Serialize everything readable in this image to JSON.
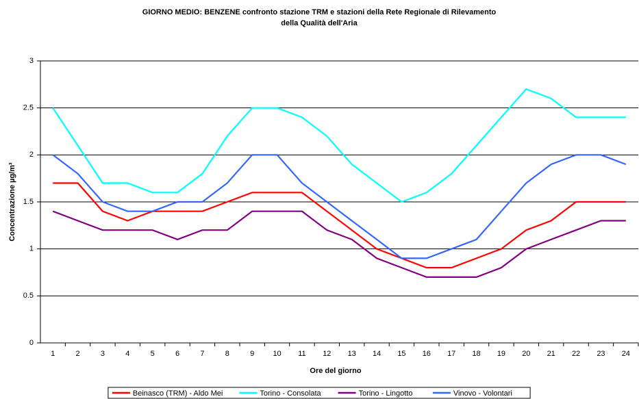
{
  "chart_data": {
    "type": "line",
    "title": [
      "GIORNO MEDIO:  BENZENE confronto stazione TRM e stazioni della Rete Regionale di Rilevamento",
      "della Qualità dell'Aria"
    ],
    "xlabel": "Ore del giorno",
    "ylabel": "Concentrazione µg/m³",
    "categories": [
      1,
      2,
      3,
      4,
      5,
      6,
      7,
      8,
      9,
      10,
      11,
      12,
      13,
      14,
      15,
      16,
      17,
      18,
      19,
      20,
      21,
      22,
      23,
      24
    ],
    "ylim": [
      0,
      3
    ],
    "yticks": [
      0,
      0.5,
      1,
      1.5,
      2,
      2.5,
      3
    ],
    "grid": true,
    "legend": "bottom",
    "series": [
      {
        "name": "Beinasco (TRM) - Aldo Mei",
        "color": "#ff0000",
        "values": [
          1.7,
          1.7,
          1.4,
          1.3,
          1.4,
          1.4,
          1.4,
          1.5,
          1.6,
          1.6,
          1.6,
          1.4,
          1.2,
          1.0,
          0.9,
          0.8,
          0.8,
          0.9,
          1.0,
          1.2,
          1.3,
          1.5,
          1.5,
          1.5
        ]
      },
      {
        "name": "Torino - Consolata",
        "color": "#00ffff",
        "values": [
          2.5,
          2.1,
          1.7,
          1.7,
          1.6,
          1.6,
          1.8,
          2.2,
          2.5,
          2.5,
          2.4,
          2.2,
          1.9,
          1.7,
          1.5,
          1.6,
          1.8,
          2.1,
          2.4,
          2.7,
          2.6,
          2.4,
          2.4,
          2.4
        ]
      },
      {
        "name": "Torino - Lingotto",
        "color": "#800080",
        "values": [
          1.4,
          1.3,
          1.2,
          1.2,
          1.2,
          1.1,
          1.2,
          1.2,
          1.4,
          1.4,
          1.4,
          1.2,
          1.1,
          0.9,
          0.8,
          0.7,
          0.7,
          0.7,
          0.8,
          1.0,
          1.1,
          1.2,
          1.3,
          1.3
        ]
      },
      {
        "name": "Vinovo - Volontari",
        "color": "#3366ff",
        "values": [
          2.0,
          1.8,
          1.5,
          1.4,
          1.4,
          1.5,
          1.5,
          1.7,
          2.0,
          2.0,
          1.7,
          1.5,
          1.3,
          1.1,
          0.9,
          0.9,
          1.0,
          1.1,
          1.4,
          1.7,
          1.9,
          2.0,
          2.0,
          1.9
        ]
      }
    ]
  }
}
